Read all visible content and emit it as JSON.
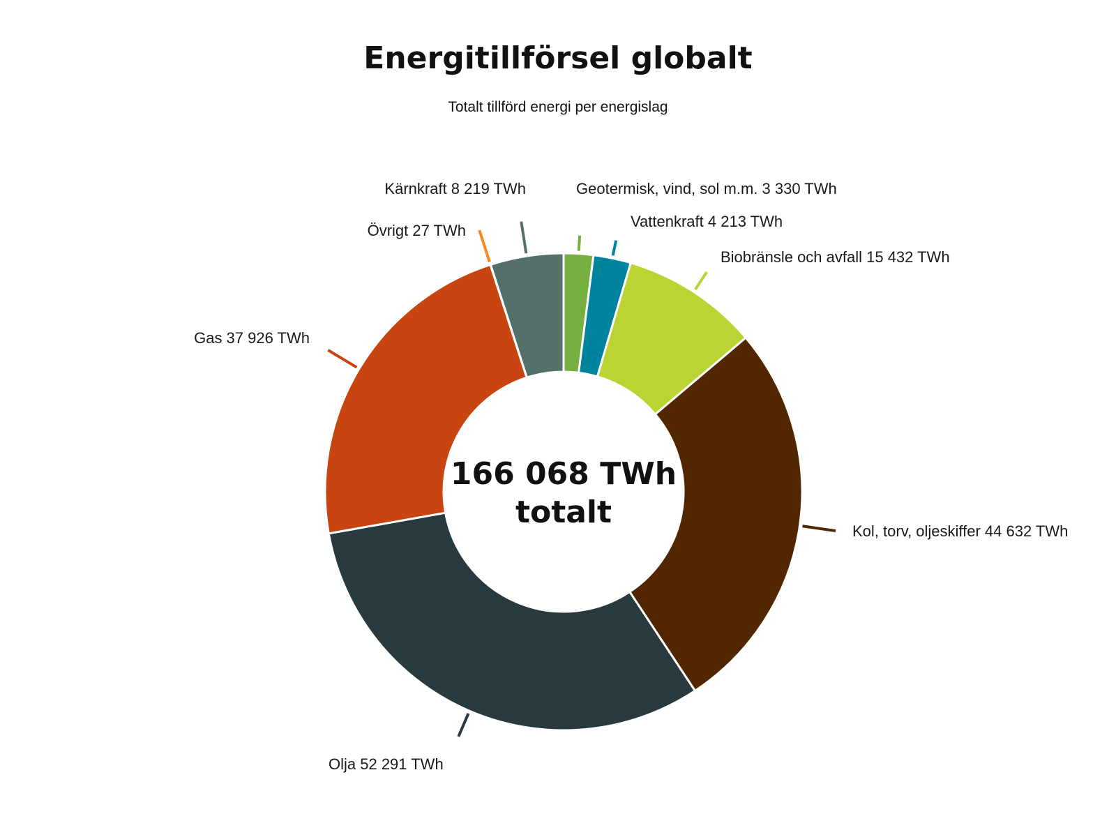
{
  "chart_data": {
    "type": "pie",
    "title": "Energitillförsel globalt",
    "subtitle": "Totalt tillförd energi per energislag",
    "center_label": [
      "166 068 TWh",
      "totalt"
    ],
    "unit": "TWh",
    "slices": [
      {
        "label": "Geotermisk, vind, sol m.m. 3 330 TWh",
        "value": 3330,
        "color": "#76b041"
      },
      {
        "label": "Vattenkraft 4 213 TWh",
        "value": 4213,
        "color": "#00849e"
      },
      {
        "label": "Biobränsle och avfall 15 432 TWh",
        "value": 15432,
        "color": "#bbd433"
      },
      {
        "label": "Kol, torv, oljeskiffer 44 632 TWh",
        "value": 44632,
        "color": "#522600"
      },
      {
        "label": "Olja 52 291 TWh",
        "value": 52291,
        "color": "#283a3d"
      },
      {
        "label": "Gas 37 926 TWh",
        "value": 37926,
        "color": "#c84411"
      },
      {
        "label": "Övrigt 27 TWh",
        "value": 27,
        "color": "#f48b1a"
      },
      {
        "label": "Kärnkraft 8 219 TWh",
        "value": 8219,
        "color": "#55706b"
      }
    ]
  }
}
